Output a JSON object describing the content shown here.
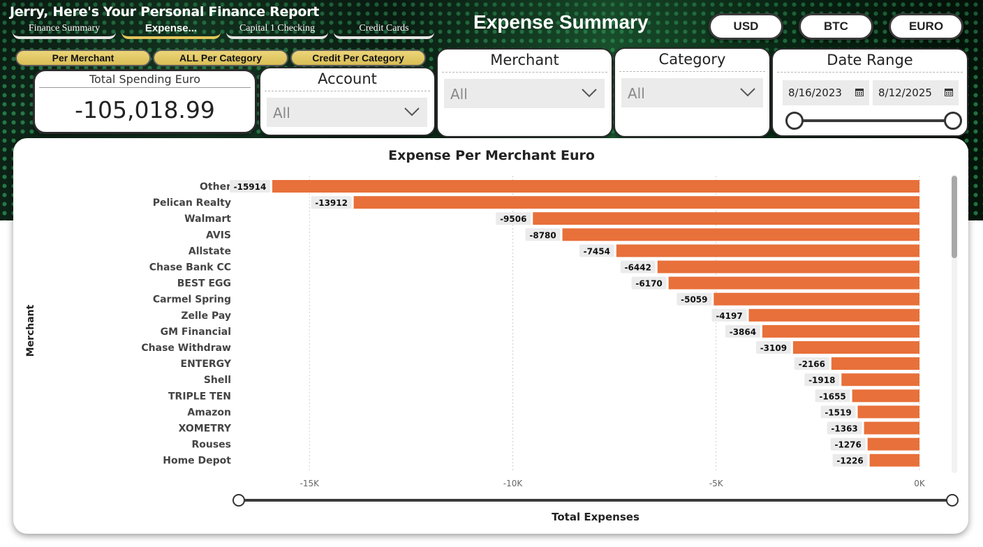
{
  "header": {
    "report_title": "Jerry, Here's Your Personal Finance Report",
    "page_heading": "Expense Summary",
    "tabs": [
      {
        "label": "Finance Summary"
      },
      {
        "label": "Expense..."
      },
      {
        "label": "Capital 1 Checking"
      },
      {
        "label": "Credit Cards"
      }
    ],
    "active_tab": "Expense...",
    "currency_buttons": [
      "USD",
      "BTC",
      "EURO"
    ]
  },
  "view_buttons": [
    "Per Merchant",
    "ALL Per Category",
    "Credit Per Category"
  ],
  "kpi": {
    "title": "Total Spending Euro",
    "value": "-105,018.99"
  },
  "filters": {
    "account": {
      "title": "Account",
      "value": "All"
    },
    "merchant": {
      "title": "Merchant",
      "value": "All"
    },
    "category": {
      "title": "Category",
      "value": "All"
    },
    "date_range": {
      "title": "Date Range",
      "start": "8/16/2023",
      "end": "8/12/2025",
      "slider_start": 0.0,
      "slider_end": 1.0
    }
  },
  "colors": {
    "bar": "#e8703a",
    "accent_gold": "#e2c55c",
    "hero_green": "#1d5d34"
  },
  "icons": {
    "dropdown": "chevron-down-icon",
    "date": "calendar-icon"
  },
  "chart_data": {
    "type": "bar",
    "orientation": "horizontal",
    "title": "Expense Per Merchant Euro",
    "xlabel": "Total Expenses",
    "ylabel": "Merchant",
    "xlim": [
      -16824,
      0
    ],
    "xticks": [
      -15000,
      -10000,
      -5000,
      0
    ],
    "xtick_labels": [
      "-15K",
      "-10K",
      "-5K",
      "0K"
    ],
    "grid": true,
    "categories": [
      "Other",
      "Pelican Realty",
      "Walmart",
      "AVIS",
      "Allstate",
      "Chase Bank CC",
      "BEST EGG",
      "Carmel Spring",
      "Zelle Pay",
      "GM Financial",
      "Chase Withdraw",
      "ENTERGY",
      "Shell",
      "TRIPLE TEN",
      "Amazon",
      "XOMETRY",
      "Rouses",
      "Home Depot"
    ],
    "values": [
      -15914,
      -13912,
      -9506,
      -8780,
      -7454,
      -6442,
      -6170,
      -5059,
      -4197,
      -3864,
      -3109,
      -2166,
      -1918,
      -1655,
      -1519,
      -1363,
      -1276,
      -1226
    ],
    "data_labels": [
      "-15914",
      "-13912",
      "-9506",
      "-8780",
      "-7454",
      "-6442",
      "-6170",
      "-5059",
      "-4197",
      "-3864",
      "-3109",
      "-2166",
      "-1918",
      "-1655",
      "-1519",
      "-1363",
      "-1276",
      "-1226"
    ]
  }
}
